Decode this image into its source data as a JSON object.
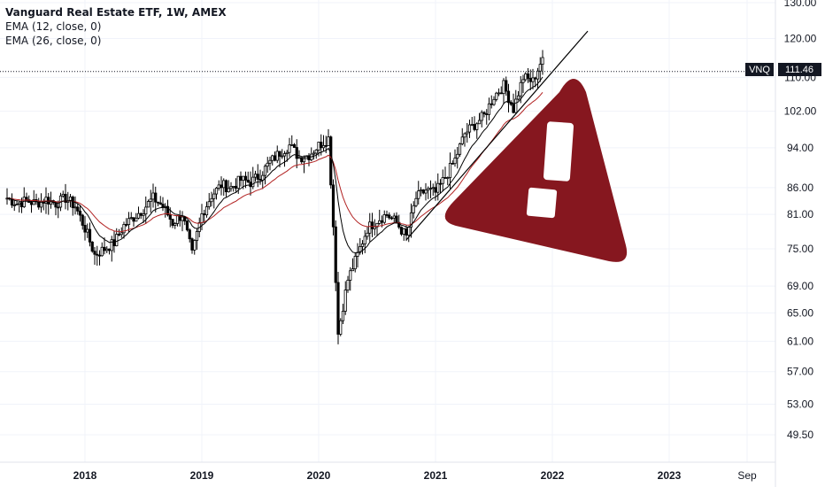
{
  "legend": {
    "title": "Vanguard Real Estate ETF, 1W, AMEX",
    "indicator_1": "EMA (12, close, 0)",
    "indicator_2": "EMA (26, close, 0)"
  },
  "price_tag": {
    "symbol": "VNQ",
    "value": "111.46"
  },
  "colors": {
    "candle": "#000000",
    "ema_fast": "#000000",
    "ema_slow": "#b22222",
    "warning": "#86171f",
    "axis_text": "#131722",
    "grid": "#f0f3fa"
  },
  "icons": {
    "warning": "warning-triangle-icon"
  },
  "chart_data": {
    "type": "candlestick",
    "title": "Vanguard Real Estate ETF, 1W, AMEX",
    "y_scale": "log",
    "ylim": [
      47.5,
      131
    ],
    "y_ticks": [
      "130.00",
      "120.00",
      "110.00",
      "102.00",
      "94.00",
      "86.00",
      "81.00",
      "75.00",
      "69.00",
      "65.00",
      "61.00",
      "57.00",
      "53.00",
      "49.50"
    ],
    "x_ticks": [
      "2018",
      "2019",
      "2020",
      "2021",
      "2022",
      "2023",
      "Sep"
    ],
    "last_price": 111.46,
    "series": [
      {
        "name": "EMA (12, close, 0)"
      },
      {
        "name": "EMA (26, close, 0)"
      }
    ],
    "closes": [
      {
        "x": "2017-05",
        "y": 84.0
      },
      {
        "x": "2017-06",
        "y": 83.0
      },
      {
        "x": "2017-07",
        "y": 83.5
      },
      {
        "x": "2017-08",
        "y": 83.0
      },
      {
        "x": "2017-09",
        "y": 83.8
      },
      {
        "x": "2017-10",
        "y": 83.0
      },
      {
        "x": "2017-11",
        "y": 84.0
      },
      {
        "x": "2017-12",
        "y": 82.5
      },
      {
        "x": "2018-01",
        "y": 78.5
      },
      {
        "x": "2018-02",
        "y": 74.0
      },
      {
        "x": "2018-03",
        "y": 75.0
      },
      {
        "x": "2018-04",
        "y": 76.0
      },
      {
        "x": "2018-05",
        "y": 79.0
      },
      {
        "x": "2018-06",
        "y": 80.5
      },
      {
        "x": "2018-07",
        "y": 82.0
      },
      {
        "x": "2018-08",
        "y": 84.0
      },
      {
        "x": "2018-09",
        "y": 82.5
      },
      {
        "x": "2018-10",
        "y": 79.5
      },
      {
        "x": "2018-11",
        "y": 81.0
      },
      {
        "x": "2018-12",
        "y": 74.0
      },
      {
        "x": "2019-01",
        "y": 81.0
      },
      {
        "x": "2019-02",
        "y": 84.5
      },
      {
        "x": "2019-03",
        "y": 86.5
      },
      {
        "x": "2019-04",
        "y": 86.0
      },
      {
        "x": "2019-05",
        "y": 87.5
      },
      {
        "x": "2019-06",
        "y": 87.0
      },
      {
        "x": "2019-07",
        "y": 88.5
      },
      {
        "x": "2019-08",
        "y": 91.0
      },
      {
        "x": "2019-09",
        "y": 93.0
      },
      {
        "x": "2019-10",
        "y": 94.5
      },
      {
        "x": "2019-11",
        "y": 92.0
      },
      {
        "x": "2019-12",
        "y": 92.5
      },
      {
        "x": "2020-01",
        "y": 94.5
      },
      {
        "x": "2020-02",
        "y": 96.0
      },
      {
        "x": "2020-03",
        "y": 62.0
      },
      {
        "x": "2020-04",
        "y": 70.0
      },
      {
        "x": "2020-05",
        "y": 74.0
      },
      {
        "x": "2020-06",
        "y": 78.5
      },
      {
        "x": "2020-07",
        "y": 80.0
      },
      {
        "x": "2020-08",
        "y": 81.0
      },
      {
        "x": "2020-09",
        "y": 79.5
      },
      {
        "x": "2020-10",
        "y": 77.0
      },
      {
        "x": "2020-11",
        "y": 84.0
      },
      {
        "x": "2020-12",
        "y": 85.5
      },
      {
        "x": "2021-01",
        "y": 85.0
      },
      {
        "x": "2021-02",
        "y": 88.0
      },
      {
        "x": "2021-03",
        "y": 91.5
      },
      {
        "x": "2021-04",
        "y": 97.0
      },
      {
        "x": "2021-05",
        "y": 99.0
      },
      {
        "x": "2021-06",
        "y": 101.0
      },
      {
        "x": "2021-07",
        "y": 105.5
      },
      {
        "x": "2021-08",
        "y": 108.0
      },
      {
        "x": "2021-09",
        "y": 102.5
      },
      {
        "x": "2021-10",
        "y": 110.0
      },
      {
        "x": "2021-11",
        "y": 109.0
      },
      {
        "x": "2021-12",
        "y": 115.0
      }
    ]
  }
}
